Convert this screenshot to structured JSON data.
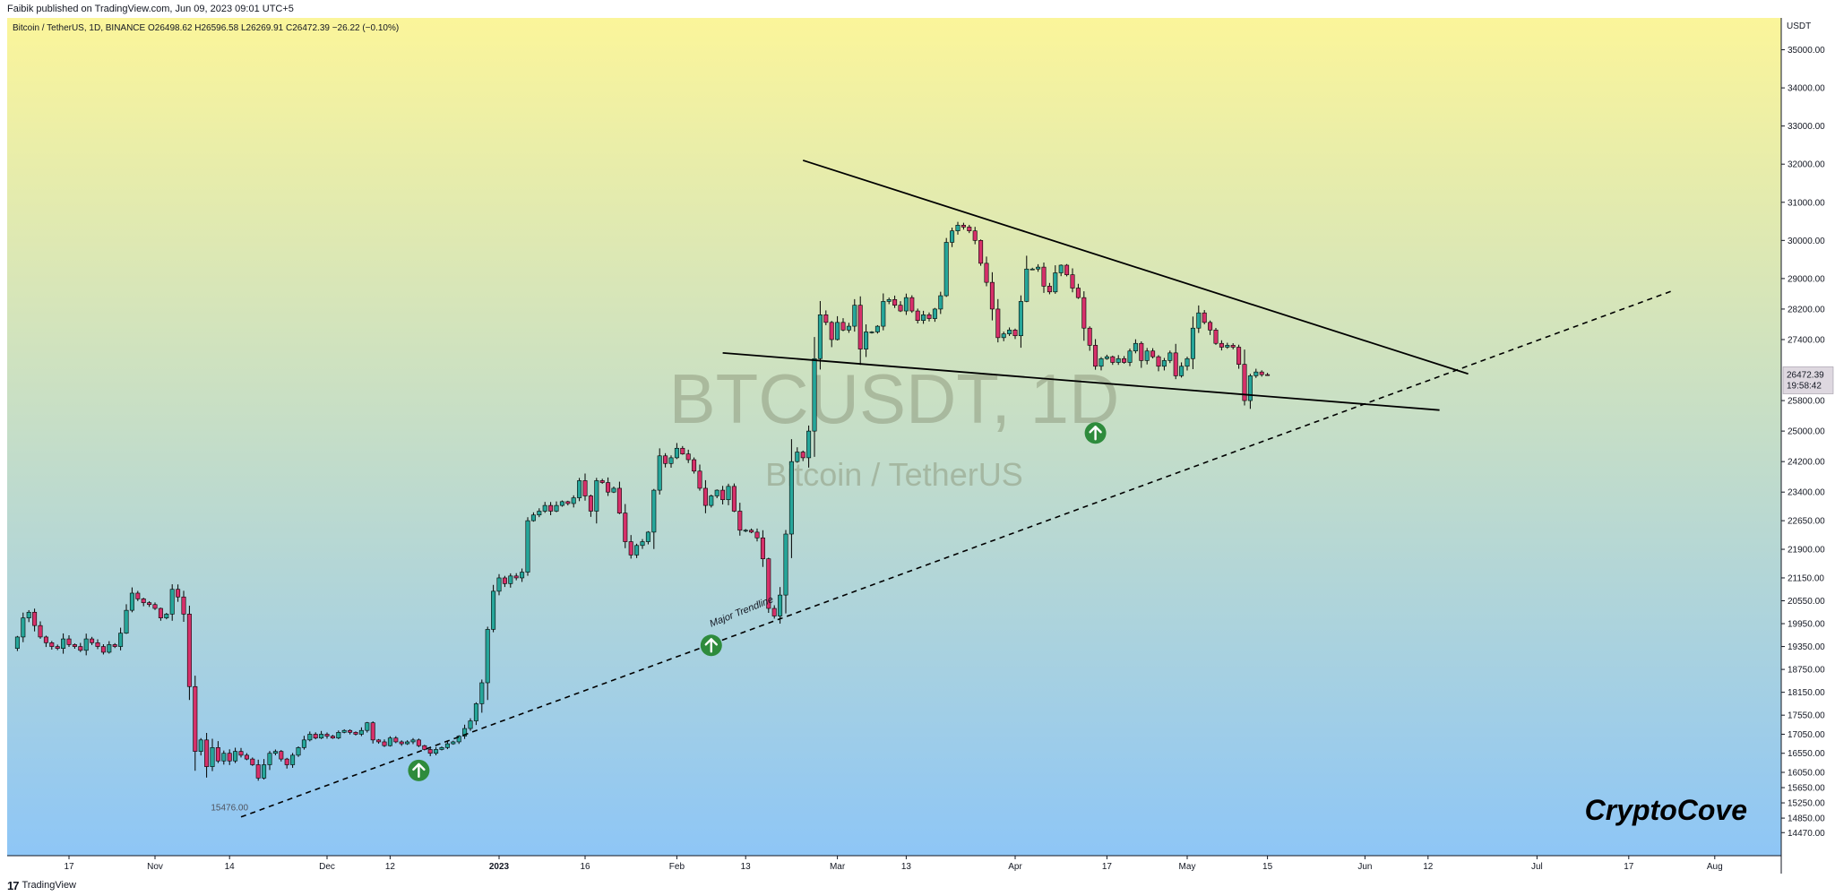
{
  "publish_info": "Faibik published on TradingView.com, Jun 09, 2023 09:01 UTC+5",
  "ohlc_header": "Bitcoin / TetherUS, 1D, BINANCE  O26498.62  H26596.58  L26269.91  C26472.39  −26.22 (−0.10%)",
  "watermark": {
    "symbol": "BTCUSDT, 1D",
    "name": "Bitcoin / TetherUS"
  },
  "brand": "CryptoCove",
  "footer_logo": "17",
  "footer_text": "TradingView",
  "colors": {
    "bull": "#26a69a",
    "bear": "#d6306a",
    "bg_top": "#fbf59a",
    "bg_bottom": "#8ec6f6",
    "line": "#000000",
    "arrow": "#2e8b3c"
  },
  "chart_data": {
    "type": "candlestick",
    "currency": "USDT",
    "ylim": [
      14100,
      35600
    ],
    "y_ticks": [
      35000,
      34000,
      33000,
      32000,
      31000,
      30000,
      29000,
      28200,
      27400,
      25800,
      25000,
      24200,
      23400,
      22650,
      21900,
      21150,
      20550,
      19950,
      19350,
      18750,
      18150,
      17550,
      17050,
      16550,
      16050,
      15650,
      15250,
      14850,
      14470
    ],
    "x_ticks": [
      {
        "label": "17",
        "i": 10
      },
      {
        "label": "Nov",
        "i": 25
      },
      {
        "label": "14",
        "i": 38
      },
      {
        "label": "Dec",
        "i": 55
      },
      {
        "label": "12",
        "i": 66
      },
      {
        "label": "2023",
        "i": 85
      },
      {
        "label": "16",
        "i": 100
      },
      {
        "label": "Feb",
        "i": 116
      },
      {
        "label": "13",
        "i": 128
      },
      {
        "label": "Mar",
        "i": 144
      },
      {
        "label": "13",
        "i": 156
      },
      {
        "label": "Apr",
        "i": 175
      },
      {
        "label": "17",
        "i": 191
      },
      {
        "label": "May",
        "i": 205
      },
      {
        "label": "15",
        "i": 219
      },
      {
        "label": "Jun",
        "i": 236
      },
      {
        "label": "12",
        "i": 247
      },
      {
        "label": "Jul",
        "i": 266
      },
      {
        "label": "17",
        "i": 282
      },
      {
        "label": "Aug",
        "i": 297
      }
    ],
    "x_max": 305,
    "closes": [
      19300,
      19600,
      20100,
      20250,
      19900,
      19600,
      19450,
      19350,
      19300,
      19550,
      19400,
      19350,
      19250,
      19550,
      19450,
      19350,
      19200,
      19400,
      19350,
      19700,
      20300,
      20750,
      20600,
      20500,
      20450,
      20350,
      20100,
      20200,
      20850,
      20650,
      20200,
      18300,
      16600,
      16900,
      16200,
      16700,
      16350,
      16550,
      16350,
      16600,
      16500,
      16400,
      16250,
      15900,
      16250,
      16550,
      16600,
      16400,
      16250,
      16500,
      16700,
      16900,
      17050,
      16950,
      17050,
      17000,
      16950,
      17100,
      17150,
      17100,
      17050,
      17150,
      17350,
      16900,
      16850,
      16750,
      16950,
      16850,
      16800,
      16850,
      16900,
      16750,
      16650,
      16550,
      16650,
      16700,
      16800,
      16850,
      17000,
      17200,
      17400,
      17850,
      18400,
      19800,
      20800,
      21150,
      21000,
      21200,
      21150,
      21300,
      22650,
      22800,
      22900,
      23050,
      22900,
      23050,
      23150,
      23100,
      23250,
      23700,
      23300,
      22900,
      23700,
      23650,
      23400,
      23500,
      22850,
      22100,
      21750,
      22000,
      22100,
      22350,
      23450,
      24350,
      24150,
      24300,
      24550,
      24400,
      24250,
      23950,
      23500,
      23050,
      23300,
      23450,
      23200,
      23550,
      22900,
      22400,
      22400,
      22350,
      22200,
      21650,
      20350,
      20150,
      20700,
      22300,
      24200,
      24450,
      24300,
      25000,
      26900,
      28050,
      27850,
      27400,
      27850,
      27650,
      27750,
      28300,
      27150,
      27600,
      27600,
      27750,
      28400,
      28450,
      28300,
      28150,
      28500,
      28150,
      27900,
      28050,
      27950,
      28200,
      28550,
      29950,
      30250,
      30400,
      30350,
      30250,
      30000,
      29400,
      28900,
      28200,
      27450,
      27550,
      27650,
      27500,
      28400,
      29250,
      29250,
      29300,
      28800,
      28650,
      29150,
      29350,
      29100,
      28750,
      28500,
      27700,
      27250,
      26700,
      26900,
      26950,
      26800,
      26900,
      26800,
      27100,
      27300,
      26850,
      27100,
      26950,
      26700,
      26850,
      27050,
      26450,
      26700,
      26900,
      27700,
      28100,
      27850,
      27650,
      27300,
      27200,
      27250,
      27200,
      26750,
      25800,
      26450,
      26550,
      26480,
      26472
    ]
  },
  "annotations": {
    "low_label": "15476.00",
    "trendline_label": "Major Trendline",
    "price_label": "26472.39",
    "countdown": "19:58:42"
  }
}
